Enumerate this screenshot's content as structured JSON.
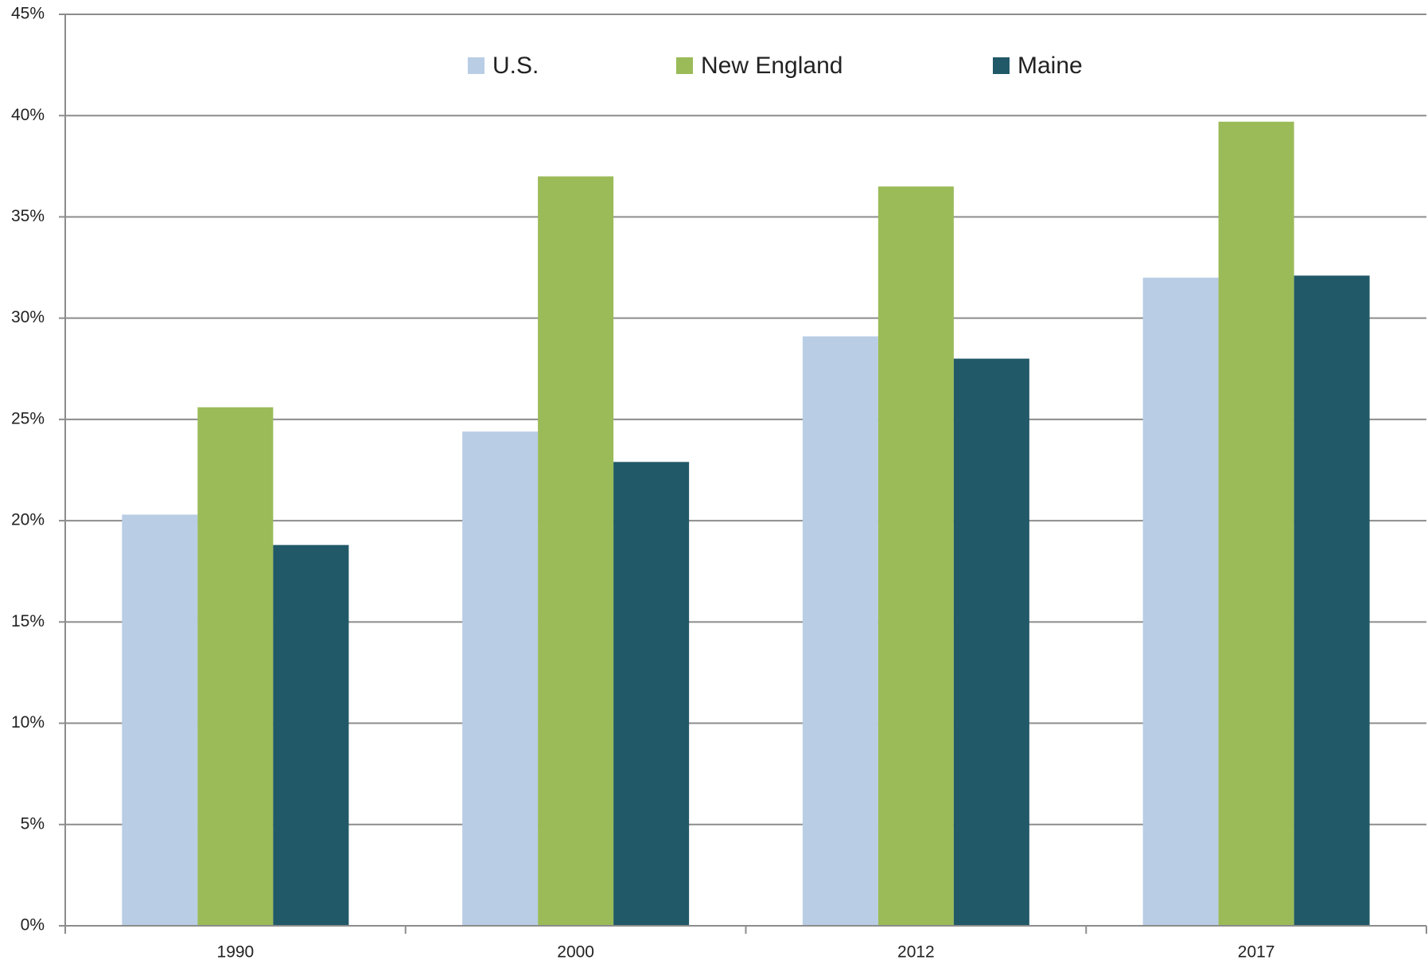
{
  "chart_data": {
    "type": "bar",
    "categories": [
      "1990",
      "2000",
      "2012",
      "2017"
    ],
    "series": [
      {
        "name": "U.S.",
        "color": "#b9cde5",
        "values": [
          20.3,
          24.4,
          29.1,
          32.0
        ]
      },
      {
        "name": "New England",
        "color": "#9bbb59",
        "values": [
          25.6,
          37.0,
          36.5,
          39.7
        ]
      },
      {
        "name": "Maine",
        "color": "#215968",
        "values": [
          18.8,
          22.9,
          28.0,
          32.1
        ]
      }
    ],
    "ylim": [
      0,
      45
    ],
    "yticks": [
      {
        "value": 0,
        "label": "0%"
      },
      {
        "value": 5,
        "label": "5%"
      },
      {
        "value": 10,
        "label": "10%"
      },
      {
        "value": 15,
        "label": "15%"
      },
      {
        "value": 20,
        "label": "20%"
      },
      {
        "value": 25,
        "label": "25%"
      },
      {
        "value": 30,
        "label": "30%"
      },
      {
        "value": 35,
        "label": "35%"
      },
      {
        "value": 40,
        "label": "40%"
      },
      {
        "value": 45,
        "label": "45%"
      }
    ],
    "grid": true,
    "legend": "top"
  }
}
